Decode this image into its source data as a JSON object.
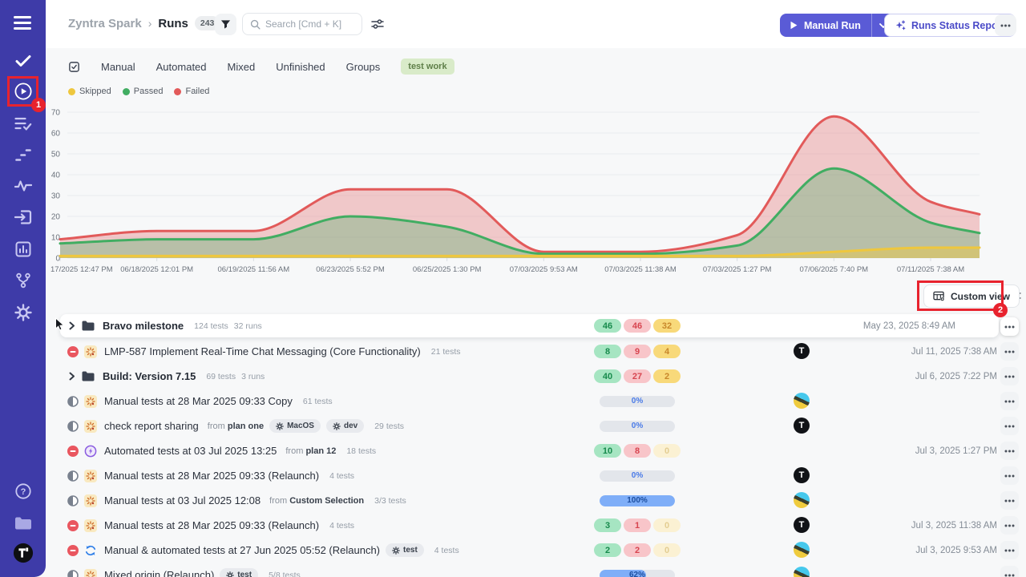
{
  "sidebar": {
    "items": [
      {
        "name": "menu-icon"
      },
      {
        "name": "check-icon"
      },
      {
        "name": "play-circle-icon",
        "active": true
      },
      {
        "name": "list-check-icon"
      },
      {
        "name": "steps-icon"
      },
      {
        "name": "pulse-icon"
      },
      {
        "name": "box-arrow-icon"
      },
      {
        "name": "bar-chart-icon"
      },
      {
        "name": "branch-icon"
      },
      {
        "name": "gear-icon"
      }
    ],
    "bottom": [
      {
        "name": "help-icon"
      },
      {
        "name": "folder-light-icon"
      },
      {
        "name": "t-avatar"
      }
    ]
  },
  "annotations": {
    "step1": "1",
    "step2": "2"
  },
  "breadcrumb": {
    "project": "Zyntra Spark",
    "separator": "›",
    "section": "Runs",
    "count": "243"
  },
  "header": {
    "search_placeholder": "Search [Cmd + K]",
    "manual_run_label": "Manual Run",
    "report_label": "Runs Status Report",
    "icons": [
      "filter-icon",
      "search-icon",
      "sliders-icon",
      "play-icon",
      "chevron-down-icon",
      "sparkle-plus-icon",
      "dots-icon"
    ]
  },
  "tabs": {
    "items": [
      "Manual",
      "Automated",
      "Mixed",
      "Unfinished",
      "Groups"
    ],
    "tag": "test work"
  },
  "toolbar": {
    "custom_view": "Custom view"
  },
  "strings": {
    "from": "from"
  },
  "chart_data": {
    "type": "area",
    "title": "",
    "categories": [
      "17/2025 12:47 PM",
      "06/18/2025 12:01 PM",
      "06/19/2025 11:56 AM",
      "06/23/2025 5:52 PM",
      "06/25/2025 1:30 PM",
      "07/03/2025 9:53 AM",
      "07/03/2025 11:38 AM",
      "07/03/2025 1:27 PM",
      "07/06/2025 7:40 PM",
      "07/11/2025 7:38 AM"
    ],
    "series": [
      {
        "name": "Skipped",
        "color": "#EEC73E",
        "fill": "rgba(238,199,62,0.45)",
        "values": [
          1,
          1,
          1,
          1,
          1,
          1,
          1,
          1,
          3,
          5
        ],
        "right_edge_value": 5
      },
      {
        "name": "Passed",
        "color": "#41AD62",
        "fill": "rgba(65,173,98,0.32)",
        "values": [
          7,
          9,
          9,
          20,
          15,
          2,
          2,
          6,
          43,
          17
        ],
        "right_edge_value": 12
      },
      {
        "name": "Failed",
        "color": "#E25A5A",
        "fill": "rgba(226,90,90,0.30)",
        "values": [
          9,
          13,
          13,
          33,
          33,
          3,
          3,
          11,
          68,
          27
        ],
        "right_edge_value": 21
      }
    ],
    "ylim": [
      0,
      70
    ],
    "ytick_step": 10,
    "grid": true,
    "legend_position": "top-left"
  },
  "table": {
    "rows": [
      {
        "type": "group",
        "highlighted": true,
        "title": "Bravo milestone",
        "meta": [
          "124 tests",
          "32 runs"
        ],
        "stats": {
          "passed": 46,
          "failed": 46,
          "skipped": 32
        },
        "avatar": null,
        "date": "May 23, 2025 8:49 AM"
      },
      {
        "type": "run",
        "status": "stopped",
        "origin": "manual",
        "title": "LMP-587 Implement Real-Time Chat Messaging (Core Functionality)",
        "meta": [
          "21 tests"
        ],
        "stats": {
          "passed": 8,
          "failed": 9,
          "skipped": 4
        },
        "avatar": "t",
        "date": "Jul 11, 2025 7:38 AM"
      },
      {
        "type": "group",
        "title": "Build: Version 7.15",
        "meta": [
          "69 tests",
          "3 runs"
        ],
        "stats": {
          "passed": 40,
          "failed": 27,
          "skipped": 2
        },
        "avatar": null,
        "date": "Jul 6, 2025 7:22 PM"
      },
      {
        "type": "run",
        "status": "in_progress",
        "origin": "manual",
        "title": "Manual tests at 28 Mar 2025 09:33 Copy",
        "meta": [
          "61 tests"
        ],
        "stats": {
          "progress": "0%",
          "pct": 0
        },
        "avatar": "photo",
        "date": ""
      },
      {
        "type": "run",
        "status": "in_progress",
        "origin": "manual",
        "title": "check report sharing",
        "from": "plan one",
        "config_badges": [
          "MacOS",
          "dev"
        ],
        "meta": [
          "29 tests"
        ],
        "stats": {
          "progress": "0%",
          "pct": 0
        },
        "avatar": "t",
        "date": ""
      },
      {
        "type": "run",
        "status": "stopped",
        "origin": "automated",
        "title": "Automated tests at 03 Jul 2025 13:25",
        "from": "plan 12",
        "meta": [
          "18 tests"
        ],
        "stats": {
          "passed": 10,
          "failed": 8,
          "skipped": 0
        },
        "avatar": null,
        "date": "Jul 3, 2025 1:27 PM"
      },
      {
        "type": "run",
        "status": "in_progress",
        "origin": "manual",
        "title": "Manual tests at 28 Mar 2025 09:33 (Relaunch)",
        "meta": [
          "4 tests"
        ],
        "stats": {
          "progress": "0%",
          "pct": 0
        },
        "avatar": "t",
        "date": ""
      },
      {
        "type": "run",
        "status": "in_progress",
        "origin": "manual",
        "title": "Manual tests at 03 Jul 2025 12:08",
        "from": "Custom Selection",
        "meta": [
          "3/3 tests"
        ],
        "stats": {
          "progress": "100%",
          "pct": 100
        },
        "avatar": "photo",
        "date": ""
      },
      {
        "type": "run",
        "status": "stopped",
        "origin": "manual",
        "title": "Manual tests at 28 Mar 2025 09:33 (Relaunch)",
        "meta": [
          "4 tests"
        ],
        "stats": {
          "passed": 3,
          "failed": 1,
          "skipped": 0
        },
        "avatar": "t",
        "date": "Jul 3, 2025 11:38 AM"
      },
      {
        "type": "run",
        "status": "stopped",
        "origin": "mixed",
        "title": "Manual & automated tests at 27 Jun 2025 05:52 (Relaunch)",
        "config_badges": [
          "test"
        ],
        "meta": [
          "4 tests"
        ],
        "stats": {
          "passed": 2,
          "failed": 2,
          "skipped": 0
        },
        "avatar": "photo",
        "date": "Jul 3, 2025 9:53 AM"
      },
      {
        "type": "run",
        "status": "in_progress",
        "origin": "manual",
        "title": "Mixed origin (Relaunch)",
        "config_badges": [
          "test"
        ],
        "meta": [
          "5/8 tests"
        ],
        "stats": {
          "progress": "62%",
          "pct": 62
        },
        "avatar": "photo",
        "date": ""
      }
    ]
  }
}
